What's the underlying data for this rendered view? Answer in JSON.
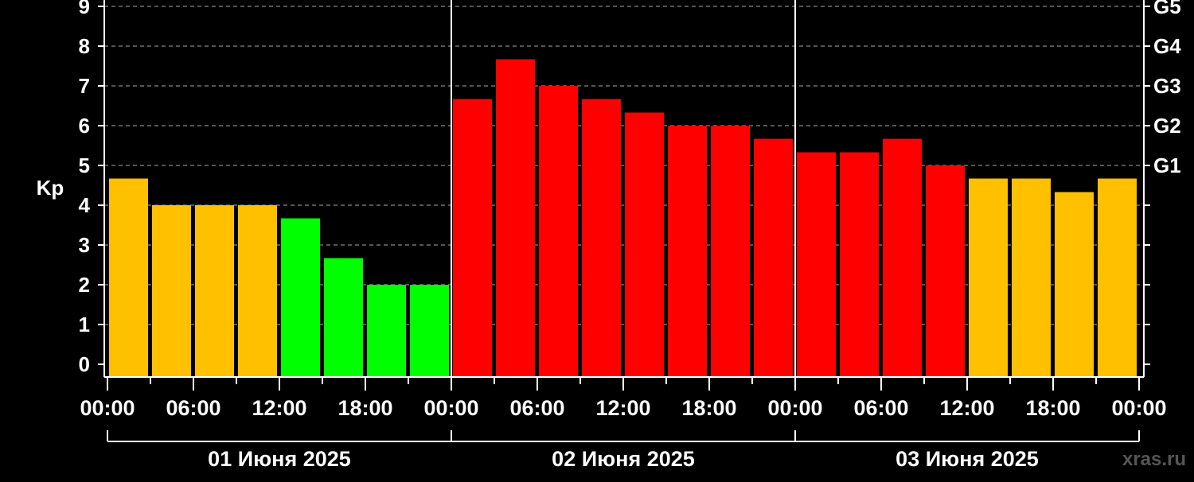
{
  "chart_data": {
    "type": "bar",
    "ylabel": "Kp",
    "ylim": [
      0,
      9
    ],
    "yticks": [
      "0",
      "1",
      "2",
      "3",
      "4",
      "5",
      "6",
      "7",
      "8",
      "9"
    ],
    "right_ticks": [
      {
        "kp": 5,
        "label": "G1"
      },
      {
        "kp": 6,
        "label": "G2"
      },
      {
        "kp": 7,
        "label": "G3"
      },
      {
        "kp": 8,
        "label": "G4"
      },
      {
        "kp": 9,
        "label": "G5"
      }
    ],
    "xtick_labels": [
      "00:00",
      "06:00",
      "12:00",
      "18:00",
      "00:00",
      "06:00",
      "12:00",
      "18:00",
      "00:00",
      "06:00",
      "12:00",
      "18:00",
      "00:00"
    ],
    "days": [
      "01 Июня 2025",
      "02 Июня 2025",
      "03 Июня 2025"
    ],
    "interval_hours": 3,
    "grid": true,
    "values": [
      4.67,
      4,
      4,
      4,
      3.67,
      2.67,
      2,
      2,
      6.67,
      7.67,
      7,
      6.67,
      6.33,
      6,
      6,
      5.67,
      5.33,
      5.33,
      5.67,
      5,
      4.67,
      4.67,
      4.33,
      4.67
    ],
    "colors": {
      "quiet": "#00ff00",
      "unsettled": "#ffc000",
      "storm": "#ff0000"
    }
  },
  "watermark": "xras.ru"
}
